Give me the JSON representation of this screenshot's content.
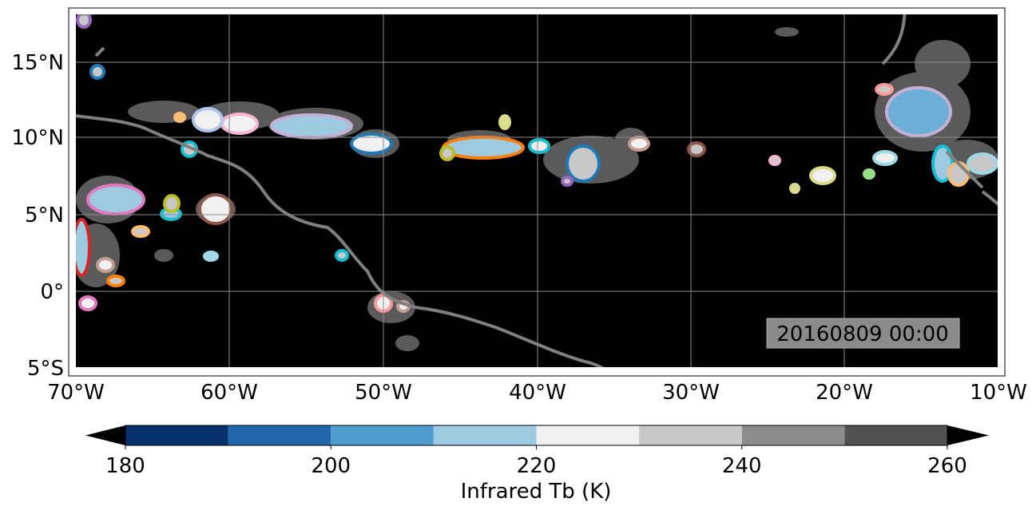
{
  "map": {
    "lon_ticks": [
      "70°W",
      "60°W",
      "50°W",
      "40°W",
      "30°W",
      "20°W",
      "10°W"
    ],
    "lat_ticks": [
      "15°N",
      "10°N",
      "5°N",
      "0°",
      "5°S"
    ],
    "timestamp": "20160809 00:00",
    "extent": {
      "lon_min": -70,
      "lon_max": -10,
      "lat_min": -5,
      "lat_max": 18
    },
    "background_color": "#000000",
    "coastline_color": "#808080",
    "gridlines": true
  },
  "colorbar": {
    "ticks": [
      "180",
      "200",
      "220",
      "240",
      "260"
    ],
    "label": "Infrared Tb (K)",
    "levels": [
      180,
      190,
      200,
      210,
      220,
      230,
      240,
      250,
      260
    ],
    "colors": [
      "#08306b",
      "#2166ac",
      "#4f9bd0",
      "#9ecae1",
      "#f0f0f0",
      "#c8c8c8",
      "#8c8c8c",
      "#525252"
    ],
    "extend_colors": {
      "under": "#000000",
      "over": "#000000"
    }
  }
}
